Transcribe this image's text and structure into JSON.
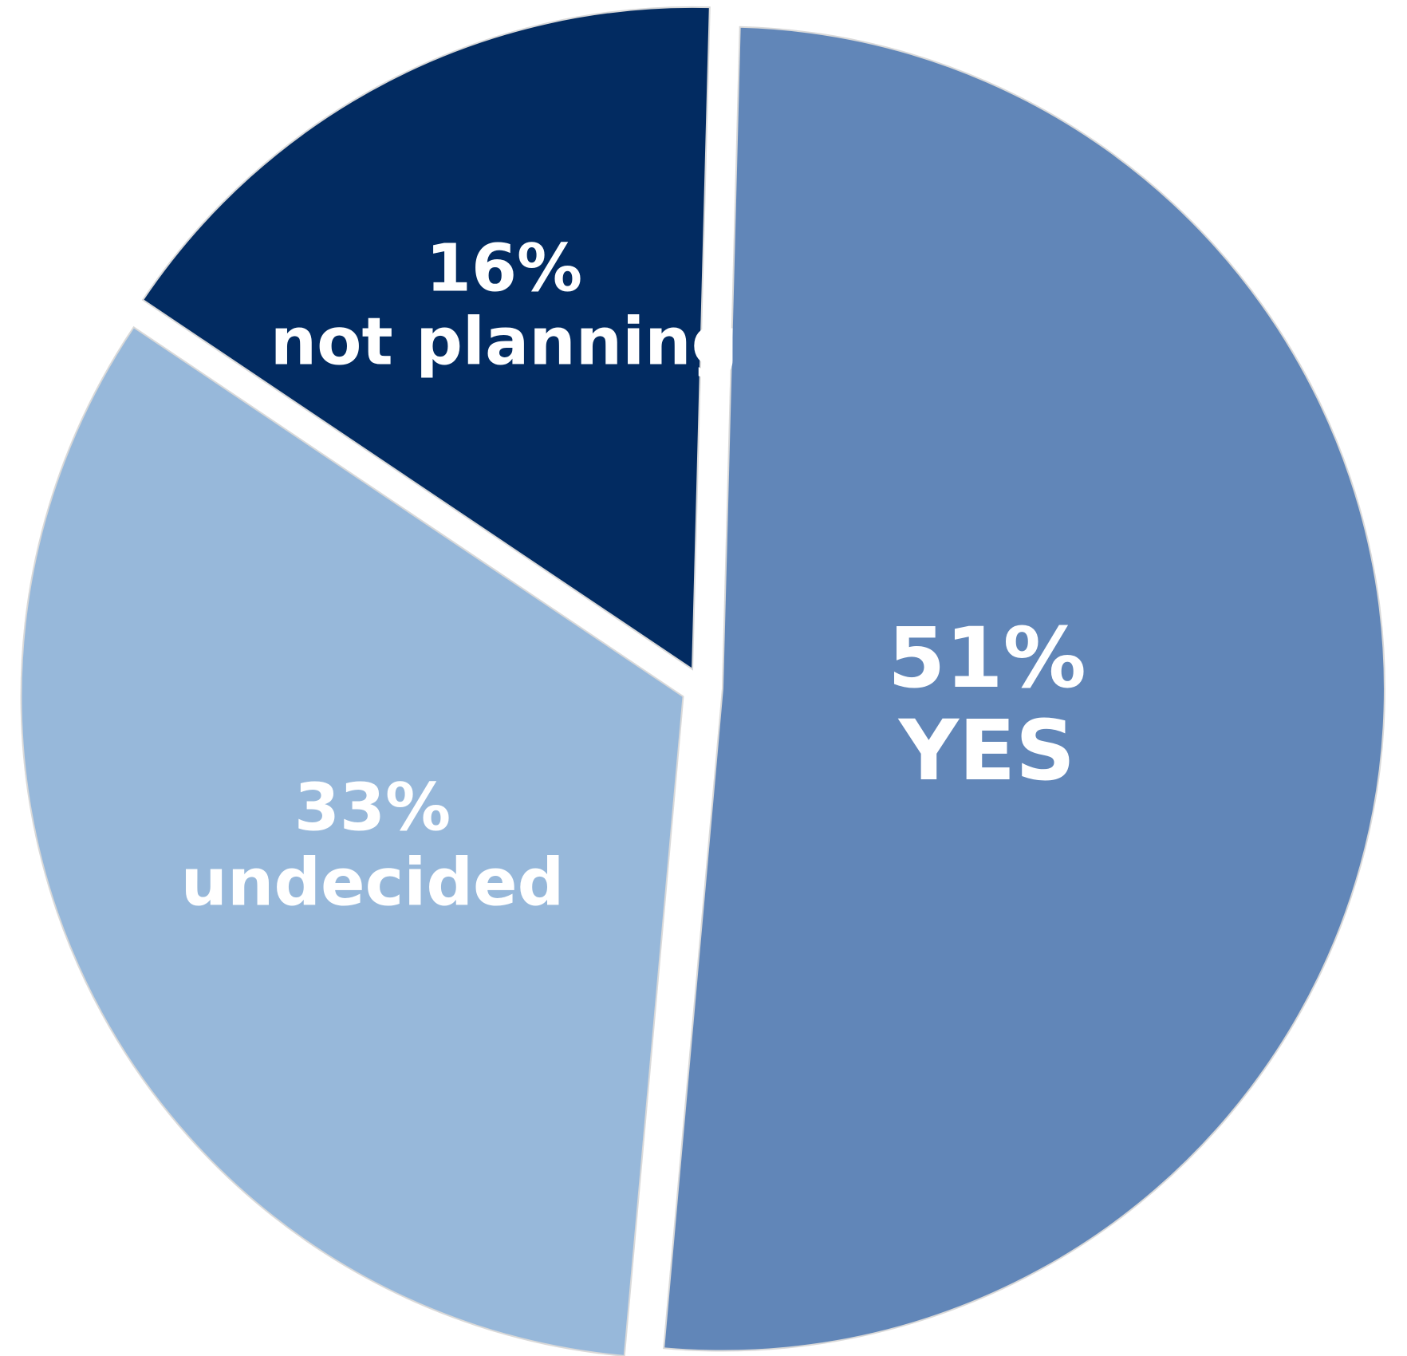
{
  "chart_data": {
    "type": "pie",
    "title": "",
    "slices": [
      {
        "value": 51,
        "percent_label": "51%",
        "category_label": "YES",
        "color": "#6186b8"
      },
      {
        "value": 33,
        "percent_label": "33%",
        "category_label": "undecided",
        "color": "#97b8da"
      },
      {
        "value": 16,
        "percent_label": "16%",
        "category_label": "not planning",
        "color": "#022b61"
      }
    ],
    "legend": "none",
    "exploded": true
  }
}
